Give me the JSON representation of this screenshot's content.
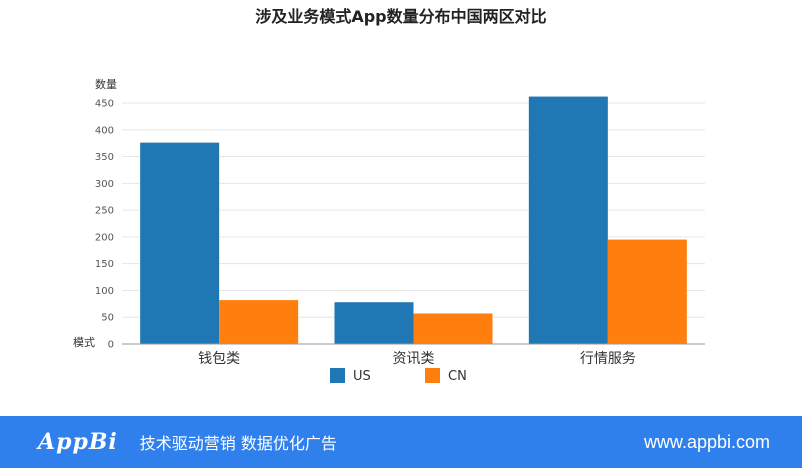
{
  "chart_data": {
    "type": "bar",
    "title": "涉及业务模式App数量分布中国两区对比",
    "ylabel": "数量",
    "xlabel": "模式",
    "ylim": [
      0,
      450
    ],
    "yticks": [
      0,
      50,
      100,
      150,
      200,
      250,
      300,
      350,
      400,
      450
    ],
    "grid": true,
    "legend": "bottom",
    "categories": [
      "钱包类",
      "资讯类",
      "行情服务"
    ],
    "series": [
      {
        "name": "US",
        "color": "#1f77b4",
        "values": [
          376,
          78,
          462
        ]
      },
      {
        "name": "CN",
        "color": "#ff7f0e",
        "values": [
          82,
          57,
          195
        ]
      }
    ]
  },
  "footer": {
    "logo": "AppBi",
    "slogan": "技术驱动营销 数据优化广告",
    "site": "www.appbi.com",
    "color": "#2f80ed"
  }
}
